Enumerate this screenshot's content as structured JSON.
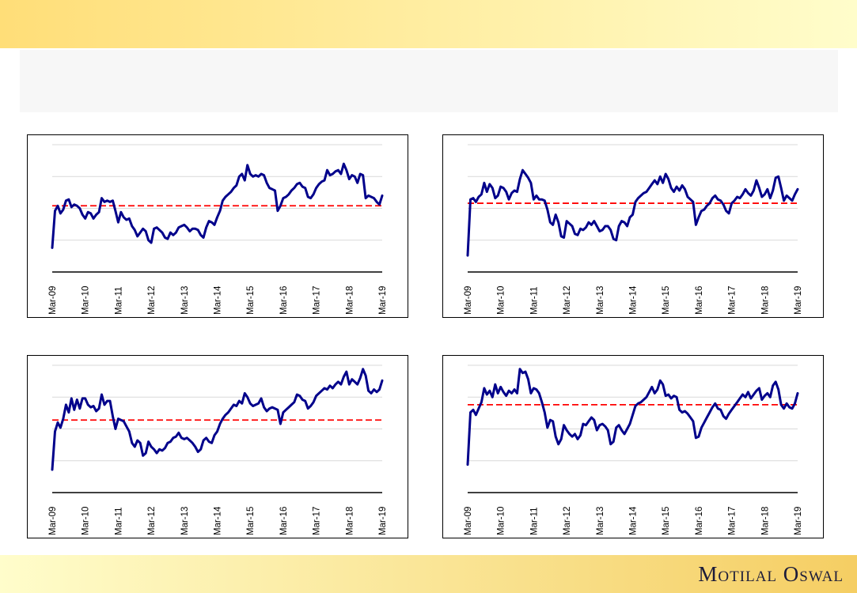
{
  "theme": {
    "page_background": "#FFFFFF",
    "header_band_gradient": [
      "#FFDE78",
      "#FFFDCB"
    ],
    "footer_band_gradient": [
      "#FFFDCB",
      "#F5CE63"
    ],
    "title_box_background": "#F7F7F7",
    "chart_border_color": "#000000",
    "gridline_color": "#D9D9D9",
    "axis_color": "#000000",
    "tick_label_color": "#000000",
    "logo_color": "#1C1C3A"
  },
  "header": {
    "title_placeholder": ""
  },
  "footer": {
    "logo_text": "Motilal Oswal"
  },
  "chart_data": [
    {
      "type": "line",
      "position": "top-left",
      "title": "",
      "x_interval": "monthly",
      "x_range": [
        "Mar-09",
        "Mar-19"
      ],
      "x_tick_labels": [
        "Mar-09",
        "Mar-10",
        "Mar-11",
        "Mar-12",
        "Mar-13",
        "Mar-14",
        "Mar-15",
        "Mar-16",
        "Mar-17",
        "Mar-18",
        "Mar-19"
      ],
      "ylim": [
        0,
        100
      ],
      "note": "no y-axis labels visible; values normalized 0-100 to plot height",
      "grid": "horizontal-light",
      "legend": "none",
      "series": [
        {
          "name": "series",
          "color": "#00008B",
          "values": [
            19,
            48,
            52,
            46,
            49,
            56,
            57,
            51,
            53,
            52,
            50,
            45,
            42,
            47,
            46,
            42,
            45,
            47,
            58,
            55,
            56,
            55,
            56,
            48,
            39,
            47,
            43,
            41,
            42,
            36,
            33,
            28,
            31,
            34,
            32,
            25,
            23,
            34,
            35,
            33,
            31,
            27,
            26,
            31,
            29,
            31,
            35,
            36,
            37,
            35,
            32,
            34,
            34,
            33,
            29,
            27,
            35,
            40,
            39,
            37,
            43,
            48,
            56,
            59,
            61,
            63,
            66,
            68,
            75,
            77,
            72,
            84,
            77,
            75,
            76,
            75,
            77,
            76,
            70,
            66,
            65,
            64,
            48,
            52,
            58,
            59,
            61,
            64,
            66,
            69,
            70,
            67,
            66,
            59,
            58,
            61,
            66,
            69,
            71,
            72,
            80,
            76,
            77,
            79,
            80,
            77,
            85,
            80,
            73,
            76,
            75,
            70,
            77,
            76,
            58,
            60,
            59,
            58,
            55,
            53,
            60
          ]
        }
      ],
      "reference_line": {
        "style": "dashed",
        "color": "#FF0000",
        "value": 52
      }
    },
    {
      "type": "line",
      "position": "top-right",
      "title": "",
      "x_interval": "monthly",
      "x_range": [
        "Mar-09",
        "Mar-19"
      ],
      "x_tick_labels": [
        "Mar-09",
        "Mar-10",
        "Mar-11",
        "Mar-12",
        "Mar-13",
        "Mar-14",
        "Mar-15",
        "Mar-16",
        "Mar-17",
        "Mar-18",
        "Mar-19"
      ],
      "ylim": [
        0,
        100
      ],
      "note": "no y-axis labels visible; values normalized 0-100 to plot height",
      "grid": "horizontal-light",
      "legend": "none",
      "series": [
        {
          "name": "series",
          "color": "#00008B",
          "values": [
            13,
            57,
            58,
            55,
            59,
            61,
            70,
            63,
            69,
            66,
            58,
            60,
            67,
            66,
            63,
            57,
            62,
            64,
            63,
            73,
            80,
            77,
            74,
            70,
            57,
            60,
            57,
            57,
            56,
            49,
            39,
            37,
            45,
            39,
            28,
            27,
            40,
            38,
            36,
            30,
            29,
            34,
            33,
            35,
            39,
            37,
            40,
            36,
            32,
            33,
            36,
            36,
            33,
            26,
            25,
            36,
            40,
            39,
            36,
            43,
            45,
            55,
            58,
            60,
            62,
            63,
            66,
            69,
            72,
            69,
            75,
            70,
            77,
            73,
            66,
            63,
            67,
            64,
            68,
            65,
            59,
            57,
            55,
            37,
            43,
            48,
            49,
            52,
            54,
            58,
            60,
            57,
            56,
            53,
            48,
            46,
            54,
            56,
            59,
            58,
            61,
            65,
            62,
            60,
            64,
            72,
            66,
            59,
            61,
            65,
            58,
            64,
            74,
            75,
            66,
            56,
            60,
            58,
            56,
            61,
            65
          ]
        }
      ],
      "reference_line": {
        "style": "dashed",
        "color": "#FF0000",
        "value": 54
      }
    },
    {
      "type": "line",
      "position": "bottom-left",
      "title": "",
      "x_interval": "monthly",
      "x_range": [
        "Mar-09",
        "Mar-19"
      ],
      "x_tick_labels": [
        "Mar-09",
        "Mar-10",
        "Mar-11",
        "Mar-12",
        "Mar-13",
        "Mar-14",
        "Mar-15",
        "Mar-16",
        "Mar-17",
        "Mar-18",
        "Mar-19"
      ],
      "ylim": [
        0,
        100
      ],
      "note": "no y-axis labels visible; values normalized 0-100 to plot height",
      "grid": "horizontal-light",
      "legend": "none",
      "series": [
        {
          "name": "series",
          "color": "#00008B",
          "values": [
            18,
            48,
            55,
            51,
            58,
            69,
            63,
            74,
            65,
            73,
            66,
            74,
            74,
            69,
            67,
            68,
            64,
            66,
            77,
            69,
            72,
            72,
            60,
            50,
            58,
            57,
            56,
            52,
            48,
            39,
            36,
            41,
            39,
            29,
            31,
            40,
            36,
            34,
            31,
            34,
            33,
            35,
            39,
            40,
            43,
            44,
            47,
            43,
            42,
            43,
            41,
            39,
            36,
            32,
            34,
            41,
            43,
            40,
            39,
            45,
            48,
            54,
            58,
            61,
            63,
            66,
            69,
            68,
            72,
            70,
            78,
            75,
            70,
            68,
            69,
            70,
            74,
            67,
            64,
            66,
            67,
            66,
            65,
            54,
            63,
            65,
            67,
            69,
            71,
            77,
            76,
            73,
            72,
            66,
            68,
            71,
            76,
            78,
            80,
            82,
            81,
            84,
            82,
            85,
            87,
            85,
            91,
            95,
            85,
            89,
            87,
            85,
            90,
            97,
            92,
            80,
            78,
            81,
            79,
            81,
            88
          ]
        }
      ],
      "reference_line": {
        "style": "dashed",
        "color": "#FF0000",
        "value": 57
      }
    },
    {
      "type": "line",
      "position": "bottom-right",
      "title": "",
      "x_interval": "monthly",
      "x_range": [
        "Mar-09",
        "Mar-19"
      ],
      "x_tick_labels": [
        "Mar-09",
        "Mar-10",
        "Mar-11",
        "Mar-12",
        "Mar-13",
        "Mar-14",
        "Mar-15",
        "Mar-16",
        "Mar-17",
        "Mar-18",
        "Mar-19"
      ],
      "ylim": [
        0,
        100
      ],
      "note": "no y-axis labels visible; values normalized 0-100 to plot height",
      "grid": "horizontal-light",
      "legend": "none",
      "series": [
        {
          "name": "series",
          "color": "#00008B",
          "values": [
            22,
            63,
            65,
            61,
            66,
            71,
            82,
            77,
            80,
            75,
            85,
            78,
            83,
            79,
            76,
            80,
            78,
            81,
            78,
            97,
            94,
            95,
            89,
            78,
            82,
            81,
            78,
            71,
            63,
            51,
            57,
            56,
            44,
            38,
            42,
            53,
            49,
            46,
            44,
            46,
            42,
            45,
            54,
            53,
            56,
            59,
            57,
            49,
            53,
            54,
            52,
            49,
            38,
            40,
            51,
            53,
            49,
            46,
            50,
            54,
            61,
            68,
            70,
            71,
            73,
            75,
            79,
            83,
            78,
            81,
            88,
            85,
            76,
            77,
            74,
            76,
            75,
            65,
            63,
            64,
            62,
            59,
            56,
            43,
            44,
            51,
            55,
            59,
            63,
            67,
            70,
            66,
            65,
            60,
            58,
            62,
            65,
            68,
            71,
            74,
            77,
            75,
            79,
            74,
            77,
            80,
            82,
            73,
            76,
            78,
            75,
            84,
            87,
            81,
            69,
            66,
            70,
            67,
            66,
            70,
            78
          ]
        }
      ],
      "reference_line": {
        "style": "dashed",
        "color": "#FF0000",
        "value": 69
      }
    }
  ]
}
